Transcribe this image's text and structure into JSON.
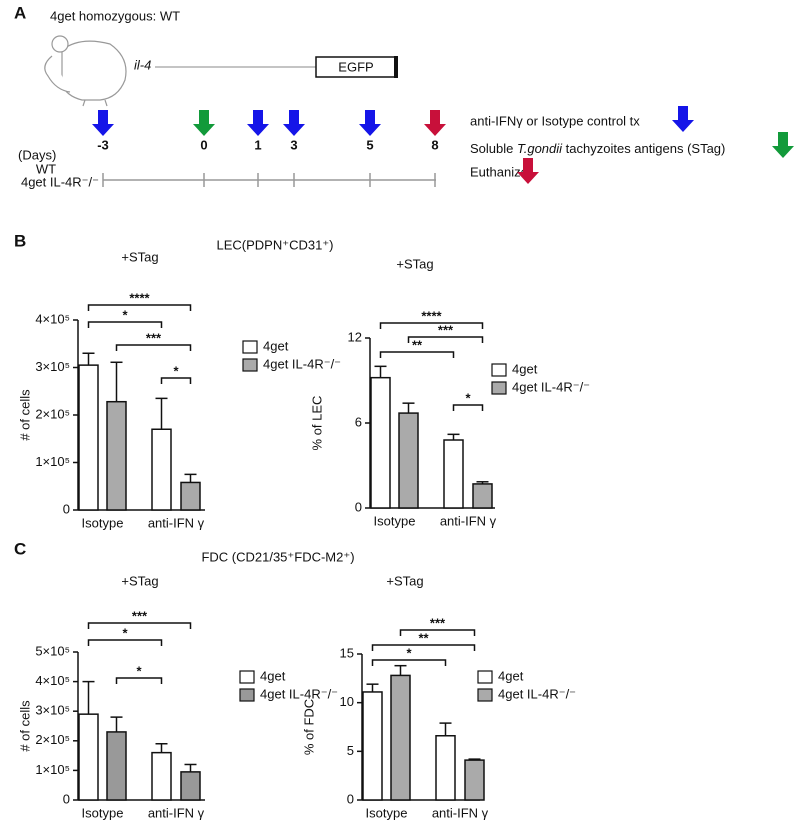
{
  "panels": {
    "a": "A",
    "b": "B",
    "c": "C"
  },
  "panel_a": {
    "title": "4get homozygous: WT",
    "gene": "il-4",
    "reporter": "EGFP",
    "days_label": "(Days)",
    "rows": [
      "WT",
      "4get IL-4R⁻/⁻"
    ],
    "days": [
      "-3",
      "0",
      "1",
      "3",
      "5",
      "8"
    ],
    "legend": {
      "antibody": "anti-IFNγ or Isotype control tx",
      "stag_pre": "Soluble ",
      "stag_italic": "T.gondii",
      "stag_post": " tachyzoites antigens (STag)",
      "euthanize": "Euthanize"
    }
  },
  "section_titles": {
    "b": "LEC(PDPN⁺CD31⁺)",
    "c": "FDC (CD21/35⁺FDC-M2⁺)"
  },
  "chart_data": [
    {
      "type": "bar",
      "title": "+STag",
      "y_label": "# of cells",
      "categories": [
        "Isotype",
        "anti-IFN γ"
      ],
      "series": [
        {
          "name": "4get",
          "color": "#ffffff",
          "values": [
            305000,
            170000
          ],
          "errors": [
            25000,
            65000
          ]
        },
        {
          "name": "4get IL-4R⁻/⁻",
          "color": "#aaaaaa",
          "values": [
            228000,
            58000
          ],
          "errors": [
            83000,
            17000
          ]
        }
      ],
      "ylim": [
        0,
        400000
      ],
      "yticks": [
        0,
        {
          "value": 100000,
          "label": "1×10⁵"
        },
        {
          "value": 200000,
          "label": "2×10⁵"
        },
        {
          "value": 300000,
          "label": "3×10⁵"
        },
        {
          "value": 400000,
          "label": "4×10⁵"
        }
      ],
      "annotations": [
        "****",
        "*",
        "***",
        "*"
      ]
    },
    {
      "type": "bar",
      "title": "+STag",
      "y_label": "% of  LEC",
      "categories": [
        "Isotype",
        "anti-IFN γ"
      ],
      "series": [
        {
          "name": "4get",
          "color": "#ffffff",
          "values": [
            9.2,
            4.8
          ],
          "errors": [
            0.8,
            0.4
          ]
        },
        {
          "name": "4get IL-4R⁻/⁻",
          "color": "#aaaaaa",
          "values": [
            6.7,
            1.7
          ],
          "errors": [
            0.7,
            0.15
          ]
        }
      ],
      "ylim": [
        0,
        12
      ],
      "yticks": [
        0,
        6,
        12
      ],
      "annotations": [
        "****",
        "***",
        "**",
        "*"
      ]
    },
    {
      "type": "bar",
      "title": "+STag",
      "y_label": "# of cells",
      "categories": [
        "Isotype",
        "anti-IFN γ"
      ],
      "series": [
        {
          "name": "4get",
          "color": "#ffffff",
          "values": [
            290000,
            160000
          ],
          "errors": [
            110000,
            30000
          ]
        },
        {
          "name": "4get IL-4R⁻/⁻",
          "color": "#999999",
          "values": [
            230000,
            95000
          ],
          "errors": [
            50000,
            25000
          ]
        }
      ],
      "ylim": [
        0,
        500000
      ],
      "yticks": [
        0,
        {
          "value": 100000,
          "label": "1×10⁵"
        },
        {
          "value": 200000,
          "label": "2×10⁵"
        },
        {
          "value": 300000,
          "label": "3×10⁵"
        },
        {
          "value": 400000,
          "label": "4×10⁵"
        },
        {
          "value": 500000,
          "label": "5×10⁵"
        }
      ],
      "annotations": [
        "***",
        "*",
        "*"
      ]
    },
    {
      "type": "bar",
      "title": "+STag",
      "y_label": "% of  FDC",
      "categories": [
        "Isotype",
        "anti-IFN γ"
      ],
      "series": [
        {
          "name": "4get",
          "color": "#ffffff",
          "values": [
            11.1,
            6.6
          ],
          "errors": [
            0.8,
            1.3
          ]
        },
        {
          "name": "4get IL-4R⁻/⁻",
          "color": "#aaaaaa",
          "values": [
            12.8,
            4.1
          ],
          "errors": [
            1.0,
            0.1
          ]
        }
      ],
      "ylim": [
        0,
        15
      ],
      "yticks": [
        0,
        5,
        10,
        15
      ],
      "annotations": [
        "***",
        "**",
        "*"
      ]
    }
  ]
}
